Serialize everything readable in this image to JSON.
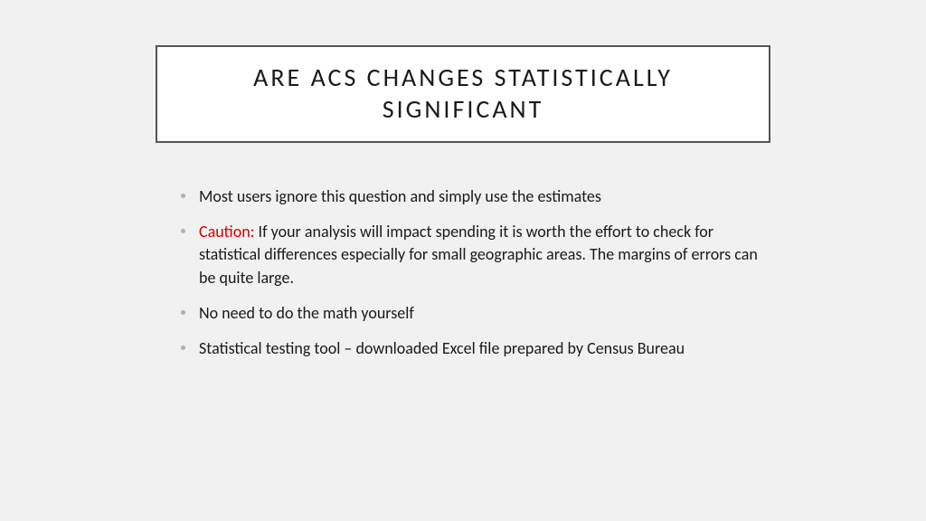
{
  "slide": {
    "background_color": "#f1f1f1",
    "title_box": {
      "text": "ARE ACS CHANGES STATISTICALLY SIGNIFICANT",
      "bg_color": "#ffffff",
      "border_color": "#555555",
      "border_width": 2,
      "font_size": 28,
      "letter_spacing": 3,
      "text_color": "#1a1a1a"
    },
    "bullets": {
      "dot_color": "#b0b0b0",
      "text_color": "#1a1a1a",
      "caution_color": "#d60000",
      "font_size": 18,
      "items": [
        {
          "prefix": "",
          "text": "Most users ignore this question and simply use the estimates"
        },
        {
          "prefix": "Caution:",
          "text": "  If your analysis will impact spending it is worth the effort to check for statistical differences especially for small geographic areas.  The margins of errors can be quite large."
        },
        {
          "prefix": "",
          "text": "No need to do the math yourself"
        },
        {
          "prefix": "",
          "text": "Statistical testing tool – downloaded Excel file prepared by Census Bureau"
        }
      ]
    }
  }
}
